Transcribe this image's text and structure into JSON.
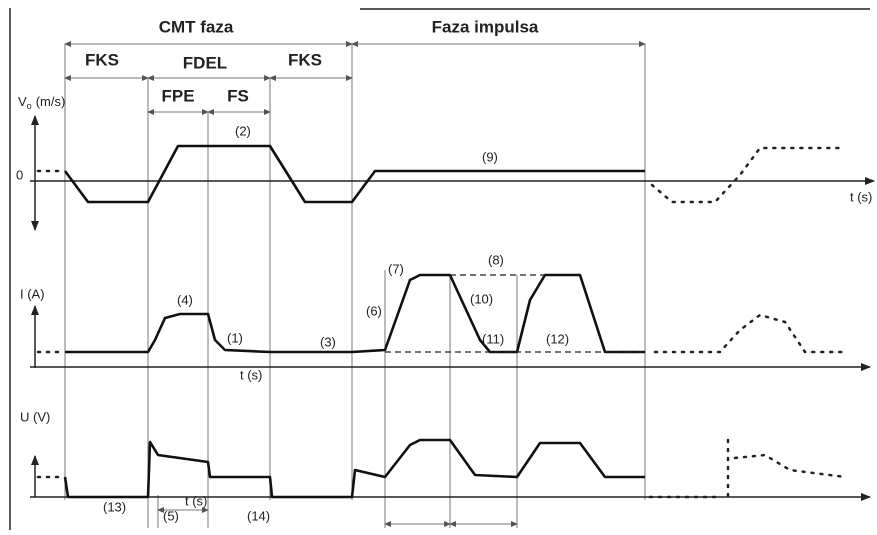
{
  "phases": {
    "cmt": "CMT faza",
    "impulse": "Faza impulsa",
    "fks_1": "FKS",
    "fdel": "FDEL",
    "fks_2": "FKS",
    "fpe": "FPE",
    "fs": "FS"
  },
  "velocity": {
    "symbol": "V",
    "subscript": "o",
    "unit": "(m/s)",
    "zero": "0",
    "time_label": "t (s)",
    "labels": [
      "(2)",
      "(9)"
    ]
  },
  "current": {
    "axis_label": "I (A)",
    "time_label": "t (s)",
    "labels": [
      "(4)",
      "(1)",
      "(3)",
      "(6)",
      "(7)",
      "(8)",
      "(10)",
      "(11)",
      "(12)"
    ]
  },
  "voltage": {
    "axis_label": "U (V)",
    "time_label": "t (s)",
    "labels": [
      "(13)",
      "(5)",
      "(14)"
    ]
  }
}
